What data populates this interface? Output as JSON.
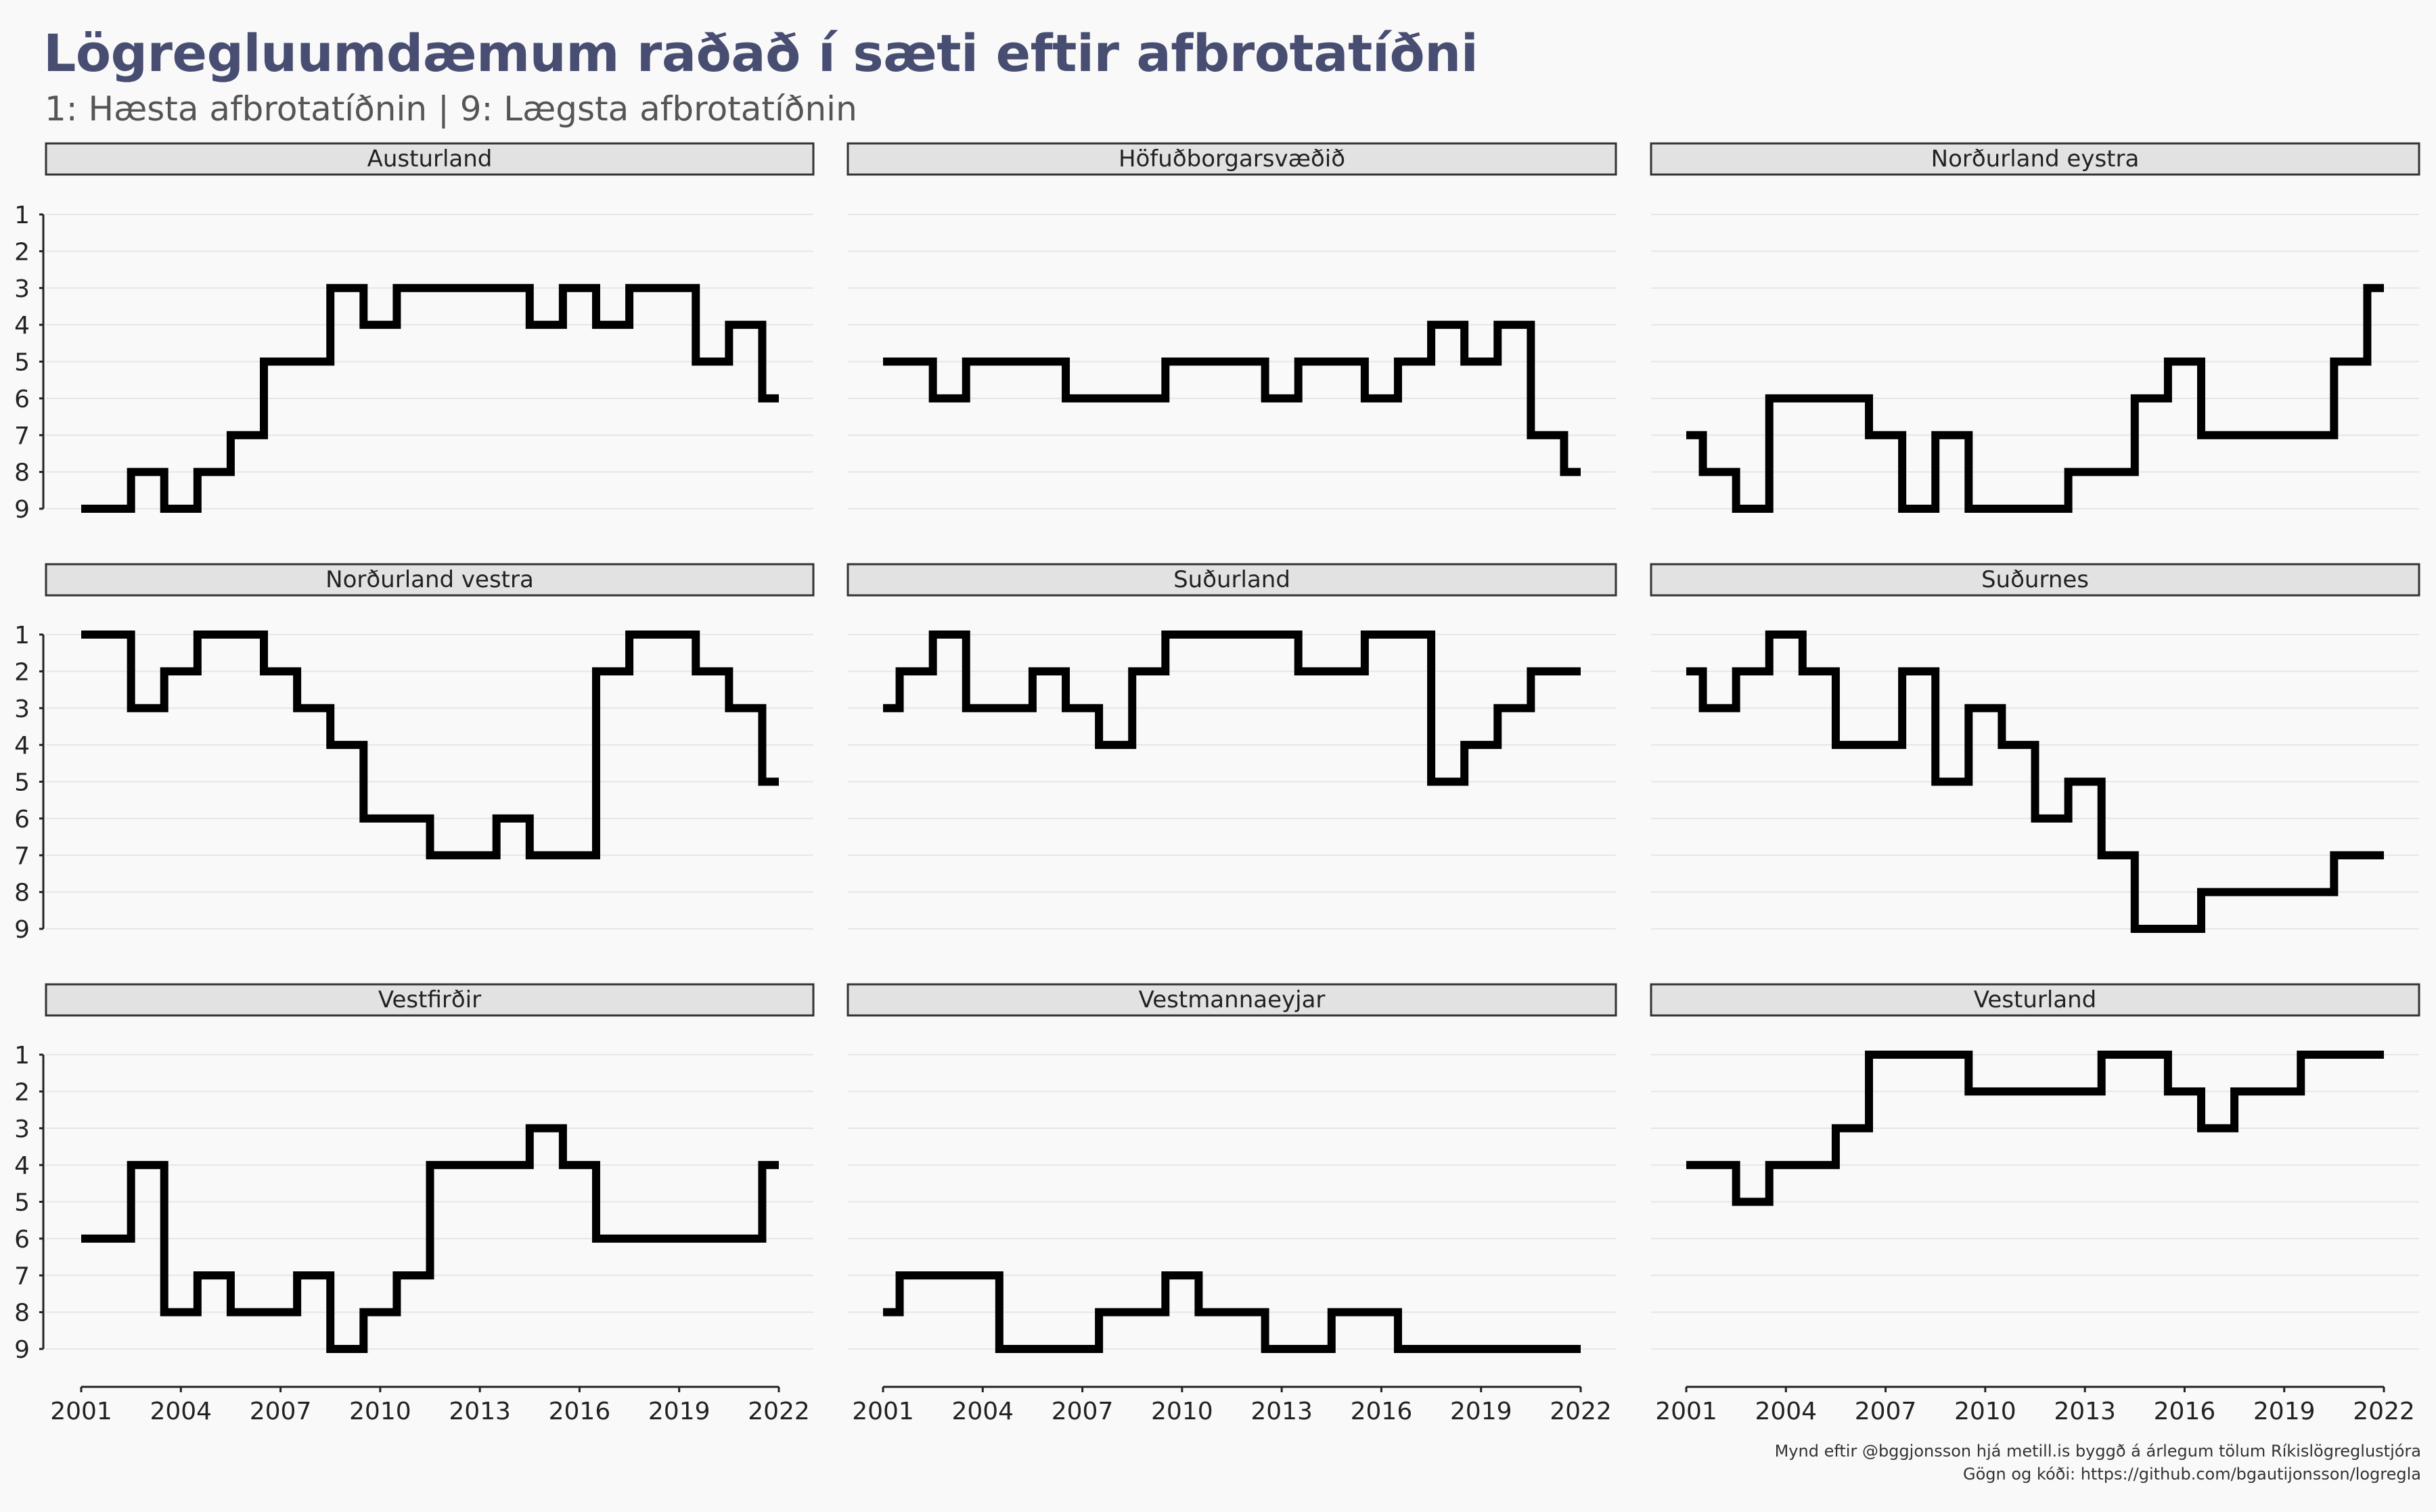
{
  "title": "Lögregluumdæmum raðað í sæti eftir afbrotatíðni",
  "subtitle": "1: Hæsta afbrotatíðnin | 9: Lægsta afbrotatíðnin",
  "caption": {
    "line1": "Mynd eftir @bggjonsson hjá metill.is byggð á árlegum tölum Ríkislögreglustjóra",
    "line2": "Gögn og kóði: https://github.com/bgautijonsson/logregla"
  },
  "colors": {
    "line": "#000000",
    "strip_fill": "#e2e2e2",
    "strip_border": "#333333",
    "grid": "#e6e6e6",
    "title": "#484d72"
  },
  "chart_data": {
    "type": "line",
    "step": "mid",
    "facet_layout": "3x3",
    "x": [
      2001,
      2002,
      2003,
      2004,
      2005,
      2006,
      2007,
      2008,
      2009,
      2010,
      2011,
      2012,
      2013,
      2014,
      2015,
      2016,
      2017,
      2018,
      2019,
      2020,
      2021,
      2022
    ],
    "x_ticks": [
      2001,
      2004,
      2007,
      2010,
      2013,
      2016,
      2019,
      2022
    ],
    "y_ticks": [
      1,
      2,
      3,
      4,
      5,
      6,
      7,
      8,
      9
    ],
    "ylim": [
      9,
      1
    ],
    "y_reversed": true,
    "series": [
      {
        "name": "Austurland",
        "values": [
          9,
          9,
          8,
          9,
          8,
          7,
          5,
          5,
          3,
          4,
          3,
          3,
          3,
          3,
          4,
          3,
          4,
          3,
          3,
          5,
          4,
          6
        ]
      },
      {
        "name": "Höfuðborgarsvæðið",
        "values": [
          5,
          5,
          6,
          5,
          5,
          5,
          6,
          6,
          6,
          5,
          5,
          5,
          6,
          5,
          5,
          6,
          5,
          4,
          5,
          4,
          7,
          8
        ]
      },
      {
        "name": "Norðurland eystra",
        "values": [
          7,
          8,
          9,
          6,
          6,
          6,
          7,
          9,
          7,
          9,
          9,
          9,
          8,
          8,
          6,
          5,
          7,
          7,
          7,
          7,
          5,
          3
        ]
      },
      {
        "name": "Norðurland vestra",
        "values": [
          1,
          1,
          3,
          2,
          1,
          1,
          2,
          3,
          4,
          6,
          6,
          7,
          7,
          6,
          7,
          7,
          2,
          1,
          1,
          2,
          3,
          5
        ]
      },
      {
        "name": "Suðurland",
        "values": [
          3,
          2,
          1,
          3,
          3,
          2,
          3,
          4,
          2,
          1,
          1,
          1,
          1,
          2,
          2,
          1,
          1,
          5,
          4,
          3,
          2,
          2
        ]
      },
      {
        "name": "Suðurnes",
        "values": [
          2,
          3,
          2,
          1,
          2,
          4,
          4,
          2,
          5,
          3,
          4,
          6,
          5,
          7,
          9,
          9,
          8,
          8,
          8,
          8,
          7,
          7
        ]
      },
      {
        "name": "Vestfirðir",
        "values": [
          6,
          6,
          4,
          8,
          7,
          8,
          8,
          7,
          9,
          8,
          7,
          4,
          4,
          4,
          3,
          4,
          6,
          6,
          6,
          6,
          6,
          4
        ]
      },
      {
        "name": "Vestmannaeyjar",
        "values": [
          8,
          7,
          7,
          7,
          9,
          9,
          9,
          8,
          8,
          7,
          8,
          8,
          9,
          9,
          8,
          8,
          9,
          9,
          9,
          9,
          9,
          9
        ]
      },
      {
        "name": "Vesturland",
        "values": [
          4,
          4,
          5,
          4,
          4,
          3,
          1,
          1,
          1,
          2,
          2,
          2,
          2,
          1,
          1,
          2,
          3,
          2,
          2,
          1,
          1,
          1
        ]
      }
    ]
  }
}
